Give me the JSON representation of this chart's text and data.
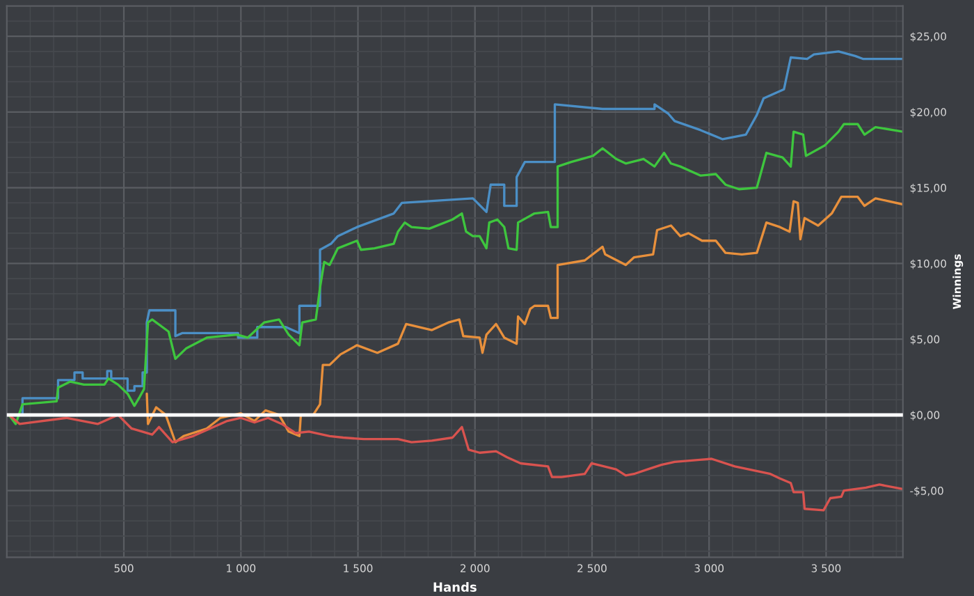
{
  "chart_data": {
    "type": "line",
    "xlabel": "Hands",
    "ylabel": "Winnings",
    "xlim": [
      0,
      3828
    ],
    "ylim": [
      -9.4,
      27
    ],
    "xticks": [
      500,
      {
        "value": 1000,
        "label": "1 000"
      },
      {
        "value": 1500,
        "label": "1 500"
      },
      {
        "value": 2000,
        "label": "2 000"
      },
      {
        "value": 2500,
        "label": "2 500"
      },
      {
        "value": 3000,
        "label": "3 000"
      },
      {
        "value": 3500,
        "label": "3 500"
      }
    ],
    "yticks": [
      {
        "value": -5,
        "label": "-$5,00"
      },
      {
        "value": 0,
        "label": "$0,00"
      },
      {
        "value": 5,
        "label": "$5,00"
      },
      {
        "value": 10,
        "label": "$10,00"
      },
      {
        "value": 15,
        "label": "$15,00"
      },
      {
        "value": 20,
        "label": "$20,00"
      },
      {
        "value": 25,
        "label": "$25,00"
      }
    ],
    "grid": true,
    "legend": false,
    "marker": "none",
    "line_style": "solid",
    "ref_lines": [
      {
        "axis": "y",
        "value": 0,
        "color": "#ffffff"
      }
    ],
    "series": [
      {
        "color": "#4b8fc6",
        "x": [
          9,
          67,
          67,
          219,
          219,
          289,
          289,
          324,
          324,
          429,
          429,
          446,
          446,
          516,
          516,
          545,
          545,
          580,
          580,
          598,
          598,
          609,
          720,
          720,
          749,
          988,
          988,
          1070,
          1070,
          1192,
          1250,
          1250,
          1338,
          1338,
          1385,
          1414,
          1496,
          1653,
          1688,
          1991,
          2049,
          2067,
          2125,
          2125,
          2178,
          2178,
          2213,
          2341,
          2341,
          2545,
          2767,
          2767,
          2825,
          2853,
          2964,
          3058,
          3157,
          3204,
          3233,
          3320,
          3349,
          3419,
          3448,
          3553,
          3624,
          3659,
          3828
        ],
        "values": [
          0,
          0,
          1.1,
          1.1,
          2.3,
          2.3,
          2.8,
          2.8,
          2.4,
          2.4,
          2.9,
          2.9,
          2.4,
          2.4,
          1.6,
          1.6,
          1.9,
          1.9,
          2.8,
          2.8,
          6.1,
          6.9,
          6.9,
          5.2,
          5.4,
          5.4,
          5.1,
          5.1,
          5.8,
          5.8,
          5.4,
          7.2,
          7.2,
          10.9,
          11.3,
          11.8,
          12.4,
          13.3,
          14.0,
          14.3,
          13.4,
          15.2,
          15.2,
          13.8,
          13.8,
          15.7,
          16.7,
          16.7,
          20.5,
          20.2,
          20.2,
          20.5,
          19.9,
          19.4,
          18.8,
          18.2,
          18.5,
          19.8,
          20.9,
          21.5,
          23.6,
          23.5,
          23.8,
          24.0,
          23.7,
          23.5,
          23.5
        ]
      },
      {
        "color": "#3ec63e",
        "x": [
          9,
          38,
          67,
          213,
          219,
          271,
          329,
          417,
          434,
          475,
          516,
          545,
          568,
          586,
          603,
          621,
          691,
          720,
          767,
          854,
          983,
          1029,
          1099,
          1163,
          1204,
          1250,
          1262,
          1320,
          1338,
          1356,
          1379,
          1414,
          1496,
          1513,
          1571,
          1653,
          1671,
          1700,
          1729,
          1805,
          1904,
          1944,
          1962,
          1991,
          2020,
          2049,
          2061,
          2096,
          2125,
          2143,
          2178,
          2184,
          2254,
          2312,
          2324,
          2353,
          2353,
          2411,
          2504,
          2545,
          2603,
          2644,
          2720,
          2767,
          2808,
          2837,
          2877,
          2964,
          3029,
          3070,
          3128,
          3204,
          3245,
          3314,
          3349,
          3361,
          3402,
          3414,
          3495,
          3553,
          3576,
          3635,
          3664,
          3711,
          3828
        ],
        "values": [
          0,
          -0.6,
          0.7,
          0.9,
          1.8,
          2.2,
          2.0,
          2.0,
          2.4,
          2.0,
          1.4,
          0.6,
          1.2,
          1.7,
          6.1,
          6.3,
          5.5,
          3.7,
          4.4,
          5.1,
          5.3,
          5.1,
          6.1,
          6.3,
          5.3,
          4.6,
          6.1,
          6.3,
          8.4,
          10.1,
          9.9,
          11.0,
          11.5,
          10.9,
          11.0,
          11.3,
          12.1,
          12.7,
          12.4,
          12.3,
          12.9,
          13.3,
          12.1,
          11.8,
          11.8,
          11.0,
          12.7,
          12.9,
          12.4,
          11.0,
          10.9,
          12.7,
          13.3,
          13.4,
          12.4,
          12.4,
          16.4,
          16.7,
          17.1,
          17.6,
          16.9,
          16.6,
          16.9,
          16.4,
          17.3,
          16.6,
          16.4,
          15.8,
          15.9,
          15.2,
          14.9,
          15.0,
          17.3,
          17.0,
          16.4,
          18.7,
          18.5,
          17.1,
          17.8,
          18.7,
          19.2,
          19.2,
          18.5,
          19.0,
          18.7
        ]
      },
      {
        "color": "#e8903c",
        "x": [
          598,
          603,
          638,
          679,
          720,
          755,
          854,
          912,
          1000,
          1058,
          1105,
          1163,
          1204,
          1250,
          1256,
          1309,
          1338,
          1350,
          1379,
          1426,
          1496,
          1583,
          1671,
          1706,
          1816,
          1886,
          1933,
          1950,
          2020,
          2032,
          2049,
          2090,
          2125,
          2178,
          2184,
          2213,
          2236,
          2254,
          2312,
          2324,
          2353,
          2353,
          2469,
          2545,
          2556,
          2644,
          2679,
          2761,
          2778,
          2837,
          2877,
          2912,
          2970,
          3029,
          3070,
          3140,
          3204,
          3245,
          3303,
          3344,
          3361,
          3379,
          3390,
          3408,
          3466,
          3524,
          3565,
          3635,
          3664,
          3711,
          3769,
          3828
        ],
        "values": [
          1.4,
          -0.6,
          0.5,
          0,
          -1.8,
          -1.4,
          -0.9,
          -0.2,
          0.1,
          -0.4,
          0.3,
          0,
          -1.1,
          -1.4,
          0,
          0,
          0.7,
          3.3,
          3.3,
          4.0,
          4.6,
          4.1,
          4.7,
          6.0,
          5.6,
          6.1,
          6.3,
          5.2,
          5.1,
          4.1,
          5.3,
          6.0,
          5.1,
          4.7,
          6.5,
          6.0,
          7.0,
          7.2,
          7.2,
          6.4,
          6.4,
          9.9,
          10.2,
          11.1,
          10.6,
          9.9,
          10.4,
          10.6,
          12.2,
          12.5,
          11.8,
          12.0,
          11.5,
          11.5,
          10.7,
          10.6,
          10.7,
          12.7,
          12.4,
          12.1,
          14.1,
          14.0,
          11.6,
          13.0,
          12.5,
          13.3,
          14.4,
          14.4,
          13.8,
          14.3,
          14.1,
          13.9
        ]
      },
      {
        "color": "#d9534f",
        "x": [
          9,
          55,
          254,
          388,
          475,
          533,
          621,
          650,
          708,
          796,
          942,
          1000,
          1058,
          1116,
          1175,
          1233,
          1291,
          1379,
          1437,
          1525,
          1671,
          1729,
          1816,
          1904,
          1944,
          1973,
          2020,
          2090,
          2137,
          2195,
          2312,
          2329,
          2370,
          2469,
          2498,
          2603,
          2644,
          2679,
          2737,
          2796,
          2853,
          3011,
          3110,
          3262,
          3303,
          3349,
          3361,
          3402,
          3408,
          3489,
          3518,
          3565,
          3576,
          3670,
          3728,
          3828
        ],
        "values": [
          0,
          -0.6,
          -0.2,
          -0.6,
          0,
          -0.9,
          -1.3,
          -0.8,
          -1.8,
          -1.4,
          -0.4,
          -0.2,
          -0.5,
          -0.2,
          -0.6,
          -1.2,
          -1.1,
          -1.4,
          -1.5,
          -1.6,
          -1.6,
          -1.8,
          -1.7,
          -1.5,
          -0.8,
          -2.3,
          -2.5,
          -2.4,
          -2.8,
          -3.2,
          -3.4,
          -4.1,
          -4.1,
          -3.9,
          -3.2,
          -3.6,
          -4.0,
          -3.9,
          -3.6,
          -3.3,
          -3.1,
          -2.9,
          -3.4,
          -3.9,
          -4.2,
          -4.5,
          -5.1,
          -5.1,
          -6.2,
          -6.3,
          -5.5,
          -5.4,
          -5.0,
          -4.8,
          -4.6,
          -4.9
        ]
      }
    ]
  }
}
